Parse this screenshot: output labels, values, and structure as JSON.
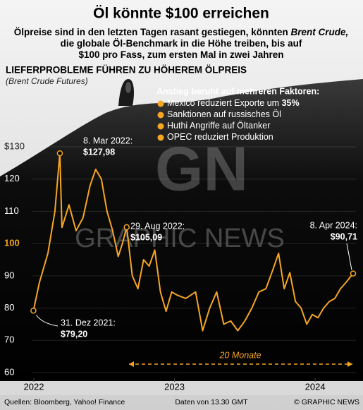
{
  "chart_data": {
    "type": "line",
    "title": "Öl könnte $100 erreichen",
    "subtitle": [
      [
        {
          "text": "Ölpreise sind in den letzten Tagen rasant gestiegen, könnten "
        },
        {
          "text": "Brent Crude,",
          "italic": true
        }
      ],
      [
        {
          "text": "die globale Öl-Benchmark  in die Höhe treiben,  bis auf"
        }
      ],
      [
        {
          "text": "$100 pro Fass, zum ersten Mal in zwei Jahren"
        }
      ]
    ],
    "heading": "LIEFERPROBLEME FÜHREN ZU HÖHEREM ÖLPREIS",
    "subheading": "(Brent Crude Futures)",
    "factors_title": "Anstieg beruht auf mehreren Faktoren:",
    "factors": [
      [
        {
          "text": "Mexico reduziert Exporte um "
        },
        {
          "text": "35%",
          "bold": true
        }
      ],
      [
        {
          "text": "Sanktionen auf russisches Öl"
        }
      ],
      [
        {
          "text": "Huthi Angriffe auf Öltanker"
        }
      ],
      [
        {
          "text": "OPEC reduziert Produktion"
        }
      ]
    ],
    "series": [
      {
        "name": "Brent Crude",
        "color": "#f5a623",
        "x": [
          2021.997,
          2022.04,
          2022.1,
          2022.15,
          2022.185,
          2022.2,
          2022.25,
          2022.3,
          2022.35,
          2022.4,
          2022.44,
          2022.48,
          2022.52,
          2022.56,
          2022.6,
          2022.63,
          2022.66,
          2022.7,
          2022.74,
          2022.78,
          2022.82,
          2022.86,
          2022.9,
          2022.94,
          2022.98,
          2023.02,
          2023.08,
          2023.15,
          2023.2,
          2023.25,
          2023.3,
          2023.35,
          2023.4,
          2023.45,
          2023.5,
          2023.55,
          2023.6,
          2023.65,
          2023.7,
          2023.74,
          2023.78,
          2023.82,
          2023.86,
          2023.9,
          2023.94,
          2023.98,
          2024.02,
          2024.06,
          2024.1,
          2024.14,
          2024.18,
          2024.22,
          2024.27
        ],
        "values": [
          79.2,
          88,
          97,
          110,
          127.98,
          105,
          112,
          104,
          108,
          118,
          123,
          120,
          110,
          104,
          96,
          100,
          105.09,
          90,
          86,
          95,
          93,
          98,
          85,
          79,
          85,
          84,
          83,
          85,
          73,
          80,
          85,
          75,
          76,
          73,
          76,
          80,
          85,
          86,
          92,
          97,
          86,
          91,
          82,
          80,
          75,
          78,
          77,
          80,
          82,
          83,
          86,
          88,
          90.71
        ]
      }
    ],
    "annotations": [
      {
        "date": "8. Mar 2022:",
        "label": "$127,98",
        "x": 2022.185,
        "value": 127.98
      },
      {
        "date": "29. Aug 2022:",
        "label": "$105,09",
        "x": 2022.66,
        "value": 105.09
      },
      {
        "date": "8. Apr 2024:",
        "label": "$90,71",
        "x": 2024.27,
        "value": 90.71
      },
      {
        "date": "31. Dez 2021:",
        "label": "$79,20",
        "x": 2021.997,
        "value": 79.2
      }
    ],
    "span_label": "20 Monate",
    "xlim": [
      2021.985,
      2024.29
    ],
    "xticks": [
      2022,
      2023,
      2024
    ],
    "ylim": [
      60,
      130
    ],
    "yticks": [
      {
        "value": 130,
        "label": "$130"
      },
      120,
      110,
      100,
      90,
      80,
      70,
      60
    ],
    "highlight_tick": 100,
    "watermark": "GRAPHIC NEWS",
    "footer": {
      "source": "Quellen: Bloomberg, Yahoo! Finance",
      "time": "Daten von 13.30 GMT",
      "credit": "© GRAPHIC NEWS"
    }
  }
}
